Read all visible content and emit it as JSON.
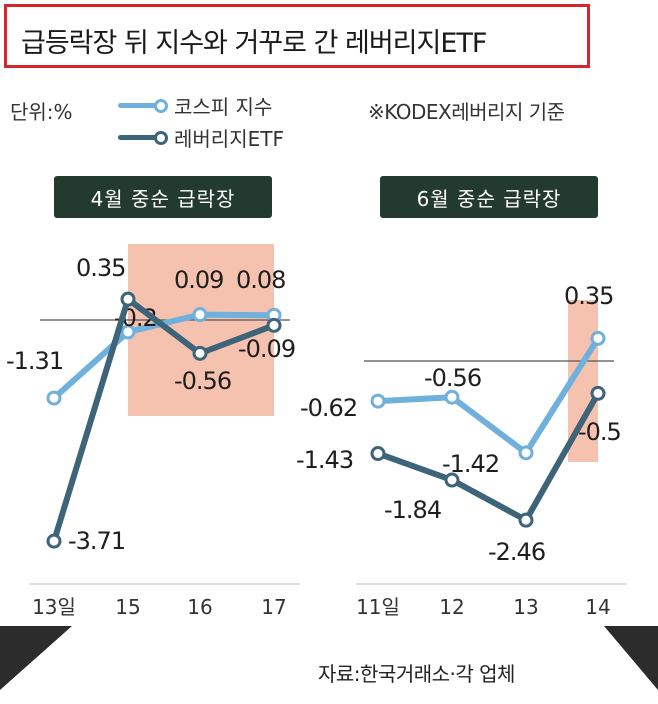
{
  "title": "급등락장 뒤 지수와 거꾸로 간 레버리지ETF",
  "unit_label": "단위:%",
  "note": "※KODEX레버리지 기준",
  "source": "자료:한국거래소·각 업체",
  "colors": {
    "kospi": "#6fb0dc",
    "etf": "#3d6478",
    "highlight": "#f4b7a2",
    "label_bg": "#233a2f"
  },
  "chart_data": [
    {
      "type": "line",
      "title": "4월 중순 급락장",
      "categories": [
        "13일",
        "15",
        "16",
        "17"
      ],
      "highlight_range": [
        "15",
        "17"
      ],
      "series": [
        {
          "name": "코스피 지수",
          "values": [
            -1.31,
            -0.2,
            0.09,
            0.08
          ],
          "labels": [
            "-1.31",
            "-0.2",
            "0.09",
            "0.08"
          ]
        },
        {
          "name": "레버리지ETF",
          "values": [
            -3.71,
            0.35,
            -0.56,
            -0.09
          ],
          "labels": [
            "-3.71",
            "0.35",
            "-0.56",
            "-0.09"
          ]
        }
      ]
    },
    {
      "type": "line",
      "title": "6월 중순 급락장",
      "categories": [
        "11일",
        "12",
        "13",
        "14"
      ],
      "highlight_range": [
        "14",
        "14"
      ],
      "series": [
        {
          "name": "코스피 지수",
          "values": [
            -0.62,
            -0.56,
            -1.42,
            0.35
          ],
          "labels": [
            "-0.62",
            "-0.56",
            "-1.42",
            "0.35"
          ]
        },
        {
          "name": "레버리지ETF",
          "values": [
            -1.43,
            -1.84,
            -2.46,
            -0.5
          ],
          "labels": [
            "-1.43",
            "-1.84",
            "-2.46",
            "-0.5"
          ]
        }
      ]
    }
  ]
}
